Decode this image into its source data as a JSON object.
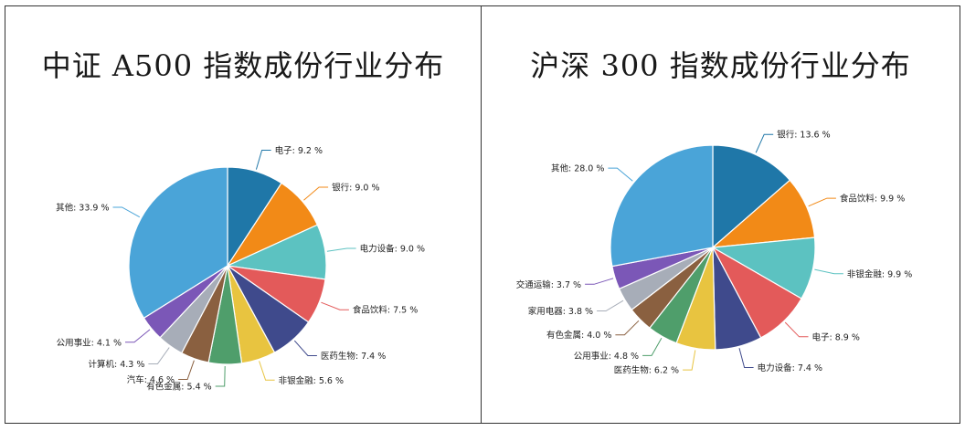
{
  "chart_data": [
    {
      "type": "pie",
      "title": "中证 A500 指数成份行业分布",
      "slices": [
        {
          "label": "电子",
          "value_text": "9.2 %",
          "value": 9.2,
          "color": "#1f77a8"
        },
        {
          "label": "银行",
          "value_text": "9.0 %",
          "value": 9.0,
          "color": "#f28a17"
        },
        {
          "label": "电力设备",
          "value_text": "9.0 %",
          "value": 9.0,
          "color": "#5cc2c1"
        },
        {
          "label": "食品饮料",
          "value_text": "7.5 %",
          "value": 7.5,
          "color": "#e35a5a"
        },
        {
          "label": "医药生物",
          "value_text": "7.4 %",
          "value": 7.4,
          "color": "#3f4a8c"
        },
        {
          "label": "非银金融",
          "value_text": "5.6 %",
          "value": 5.6,
          "color": "#e8c440"
        },
        {
          "label": "有色金属",
          "value_text": "5.4 %",
          "value": 5.4,
          "color": "#4f9e6b"
        },
        {
          "label": "汽车",
          "value_text": "4.6 %",
          "value": 4.6,
          "color": "#8a6040"
        },
        {
          "label": "计算机",
          "value_text": "4.3 %",
          "value": 4.3,
          "color": "#a7adb8"
        },
        {
          "label": "公用事业",
          "value_text": "4.1 %",
          "value": 4.1,
          "color": "#7b57b7"
        },
        {
          "label": "其他",
          "value_text": "33.9 %",
          "value": 33.9,
          "color": "#4aa4d8"
        }
      ]
    },
    {
      "type": "pie",
      "title": "沪深 300 指数成份行业分布",
      "slices": [
        {
          "label": "银行",
          "value_text": "13.6 %",
          "value": 13.6,
          "color": "#1f77a8"
        },
        {
          "label": "食品饮料",
          "value_text": "9.9 %",
          "value": 9.9,
          "color": "#f28a17"
        },
        {
          "label": "非银金融",
          "value_text": "9.9 %",
          "value": 9.9,
          "color": "#5cc2c1"
        },
        {
          "label": "电子",
          "value_text": "8.9 %",
          "value": 8.9,
          "color": "#e35a5a"
        },
        {
          "label": "电力设备",
          "value_text": "7.4 %",
          "value": 7.4,
          "color": "#3f4a8c"
        },
        {
          "label": "医药生物",
          "value_text": "6.2 %",
          "value": 6.2,
          "color": "#e8c440"
        },
        {
          "label": "公用事业",
          "value_text": "4.8 %",
          "value": 4.8,
          "color": "#4f9e6b"
        },
        {
          "label": "有色金属",
          "value_text": "4.0 %",
          "value": 4.0,
          "color": "#8a6040"
        },
        {
          "label": "家用电器",
          "value_text": "3.8 %",
          "value": 3.8,
          "color": "#a7adb8"
        },
        {
          "label": "交通运输",
          "value_text": "3.7 %",
          "value": 3.7,
          "color": "#7b57b7"
        },
        {
          "label": "其他",
          "value_text": "28.0 %",
          "value": 28.0,
          "color": "#4aa4d8"
        }
      ]
    }
  ]
}
